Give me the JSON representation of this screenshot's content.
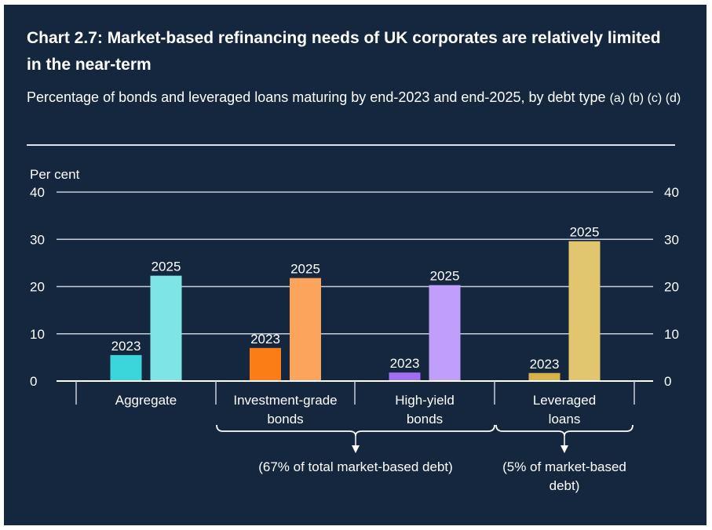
{
  "chart_title": "Chart 2.7: Market-based refinancing needs of UK corporates are relatively limited in the near-term",
  "chart_subtitle": "Percentage of bonds and leveraged loans maturing by end-2023 and end-2025, by debt type",
  "chart_notes": [
    "(a)",
    "(b)",
    "(c)",
    "(d)"
  ],
  "chart_data": {
    "type": "bar",
    "ylabel": "Per cent",
    "ylim": [
      0,
      40
    ],
    "yticks": [
      0,
      10,
      20,
      30,
      40
    ],
    "grid": true,
    "colors": {
      "background": "#15263f",
      "text": "#ffffff",
      "grid": "#c7ced8"
    },
    "categories": [
      {
        "label": [
          "Aggregate"
        ],
        "bars": [
          {
            "year": "2023",
            "value": 5.5,
            "color": "#3ad6dc"
          },
          {
            "year": "2025",
            "value": 22.3,
            "color": "#7fe4e6"
          }
        ]
      },
      {
        "label": [
          "Investment-grade",
          "bonds"
        ],
        "bars": [
          {
            "year": "2023",
            "value": 7.0,
            "color": "#fa7d15"
          },
          {
            "year": "2025",
            "value": 21.8,
            "color": "#fda45c"
          }
        ]
      },
      {
        "label": [
          "High-yield",
          "bonds"
        ],
        "bars": [
          {
            "year": "2023",
            "value": 1.8,
            "color": "#9f6ef2"
          },
          {
            "year": "2025",
            "value": 20.3,
            "color": "#bf9ff9"
          }
        ]
      },
      {
        "label": [
          "Leveraged",
          "loans"
        ],
        "bars": [
          {
            "year": "2023",
            "value": 1.7,
            "color": "#d7b44a"
          },
          {
            "year": "2025",
            "value": 29.6,
            "color": "#e2c56f"
          }
        ]
      }
    ],
    "annotations": [
      {
        "text": [
          "(67% of total market-based debt)"
        ],
        "spans": "Investment-grade bonds, High-yield bonds"
      },
      {
        "text": [
          "(5% of market-based",
          "debt)"
        ],
        "spans": "Leveraged loans"
      }
    ]
  }
}
